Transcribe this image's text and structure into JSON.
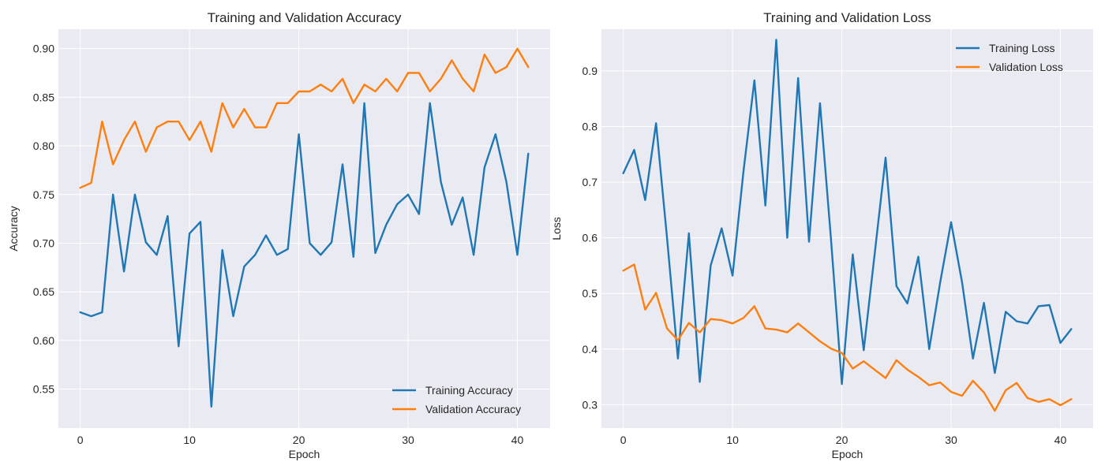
{
  "colors": {
    "training": "#1f77b4",
    "validation": "#ff7f0e",
    "plot_background": "#eaeaf2",
    "grid": "#ffffff"
  },
  "chart_data": [
    {
      "type": "line",
      "title": "Training and Validation Accuracy",
      "xlabel": "Epoch",
      "ylabel": "Accuracy",
      "xlim": [
        -2,
        43
      ],
      "ylim": [
        0.51,
        0.92
      ],
      "xticks": [
        0,
        10,
        20,
        30,
        40
      ],
      "xtick_labels": [
        "0",
        "10",
        "20",
        "30",
        "40"
      ],
      "yticks": [
        0.55,
        0.6,
        0.65,
        0.7,
        0.75,
        0.8,
        0.85,
        0.9
      ],
      "ytick_labels": [
        "0.55",
        "0.60",
        "0.65",
        "0.70",
        "0.75",
        "0.80",
        "0.85",
        "0.90"
      ],
      "grid": true,
      "legend_position": "bottom-right",
      "x": [
        0,
        1,
        2,
        3,
        4,
        5,
        6,
        7,
        8,
        9,
        10,
        11,
        12,
        13,
        14,
        15,
        16,
        17,
        18,
        19,
        20,
        21,
        22,
        23,
        24,
        25,
        26,
        27,
        28,
        29,
        30,
        31,
        32,
        33,
        34,
        35,
        36,
        37,
        38,
        39,
        40,
        41
      ],
      "series": [
        {
          "name": "Training Accuracy",
          "color": "#1f77b4",
          "values": [
            0.629,
            0.625,
            0.629,
            0.75,
            0.671,
            0.75,
            0.701,
            0.688,
            0.728,
            0.594,
            0.71,
            0.722,
            0.532,
            0.693,
            0.625,
            0.676,
            0.688,
            0.708,
            0.688,
            0.694,
            0.812,
            0.7,
            0.688,
            0.701,
            0.781,
            0.686,
            0.844,
            0.69,
            0.719,
            0.74,
            0.75,
            0.73,
            0.844,
            0.763,
            0.719,
            0.747,
            0.688,
            0.778,
            0.812,
            0.763,
            0.688,
            0.792
          ]
        },
        {
          "name": "Validation Accuracy",
          "color": "#ff7f0e",
          "values": [
            0.757,
            0.762,
            0.825,
            0.781,
            0.806,
            0.825,
            0.794,
            0.819,
            0.825,
            0.825,
            0.806,
            0.825,
            0.794,
            0.844,
            0.819,
            0.838,
            0.819,
            0.819,
            0.844,
            0.844,
            0.856,
            0.856,
            0.863,
            0.856,
            0.869,
            0.844,
            0.863,
            0.856,
            0.869,
            0.856,
            0.875,
            0.875,
            0.856,
            0.869,
            0.888,
            0.869,
            0.856,
            0.894,
            0.875,
            0.881,
            0.9,
            0.881
          ]
        }
      ]
    },
    {
      "type": "line",
      "title": "Training and Validation Loss",
      "xlabel": "Epoch",
      "ylabel": "Loss",
      "xlim": [
        -2,
        43
      ],
      "ylim": [
        0.258,
        0.975
      ],
      "xticks": [
        0,
        10,
        20,
        30,
        40
      ],
      "xtick_labels": [
        "0",
        "10",
        "20",
        "30",
        "40"
      ],
      "yticks": [
        0.3,
        0.4,
        0.5,
        0.6,
        0.7,
        0.8,
        0.9
      ],
      "ytick_labels": [
        "0.3",
        "0.4",
        "0.5",
        "0.6",
        "0.7",
        "0.8",
        "0.9"
      ],
      "grid": true,
      "legend_position": "top-right",
      "x": [
        0,
        1,
        2,
        3,
        4,
        5,
        6,
        7,
        8,
        9,
        10,
        11,
        12,
        13,
        14,
        15,
        16,
        17,
        18,
        19,
        20,
        21,
        22,
        23,
        24,
        25,
        26,
        27,
        28,
        29,
        30,
        31,
        32,
        33,
        34,
        35,
        36,
        37,
        38,
        39,
        40,
        41
      ],
      "series": [
        {
          "name": "Training Loss",
          "color": "#1f77b4",
          "values": [
            0.716,
            0.758,
            0.668,
            0.806,
            0.6,
            0.383,
            0.608,
            0.341,
            0.55,
            0.617,
            0.532,
            0.72,
            0.883,
            0.658,
            0.956,
            0.6,
            0.887,
            0.593,
            0.842,
            0.6,
            0.337,
            0.57,
            0.398,
            0.57,
            0.744,
            0.513,
            0.482,
            0.566,
            0.4,
            0.52,
            0.628,
            0.52,
            0.383,
            0.483,
            0.357,
            0.467,
            0.45,
            0.446,
            0.477,
            0.479,
            0.411,
            0.436
          ]
        },
        {
          "name": "Validation Loss",
          "color": "#ff7f0e",
          "values": [
            0.541,
            0.552,
            0.471,
            0.501,
            0.437,
            0.416,
            0.447,
            0.43,
            0.454,
            0.452,
            0.446,
            0.456,
            0.477,
            0.437,
            0.435,
            0.43,
            0.446,
            0.43,
            0.414,
            0.401,
            0.393,
            0.365,
            0.378,
            0.363,
            0.348,
            0.38,
            0.363,
            0.35,
            0.335,
            0.34,
            0.323,
            0.316,
            0.343,
            0.322,
            0.289,
            0.326,
            0.339,
            0.312,
            0.305,
            0.31,
            0.299,
            0.31
          ]
        }
      ]
    }
  ]
}
